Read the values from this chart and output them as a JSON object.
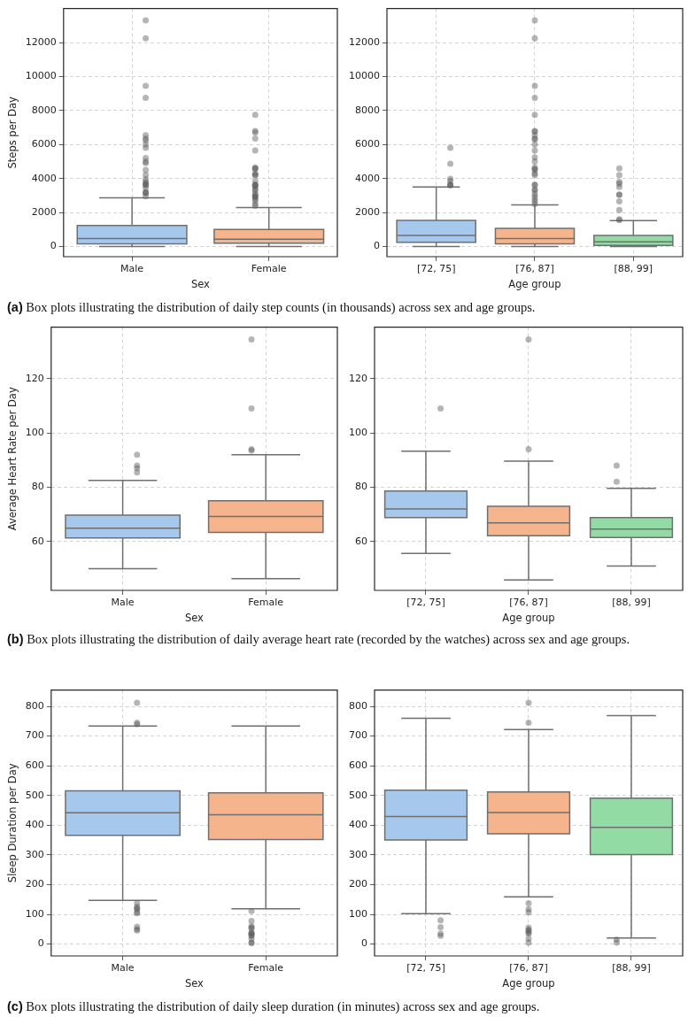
{
  "chart_data": [
    {
      "type": "box",
      "ylabel": "Steps per Day",
      "xlabel": "Sex",
      "categories": [
        "Male",
        "Female"
      ],
      "colors": [
        "#a6c8ec",
        "#f5b48c"
      ],
      "ylim": [
        -600,
        14000
      ],
      "yticks": [
        0,
        2000,
        4000,
        6000,
        8000,
        10000,
        12000
      ],
      "grid": true,
      "boxes": [
        {
          "low": 0,
          "q1": 150,
          "median": 470,
          "q3": 1240,
          "high": 2860,
          "outliers": [
            13300,
            12250,
            9450,
            8750,
            6550,
            6350,
            6250,
            6000,
            5800,
            5200,
            5000,
            4900,
            4500,
            4200,
            3950,
            3800,
            3700,
            3650,
            3600,
            3450,
            3200,
            3150,
            3150,
            2950
          ]
        },
        {
          "low": 0,
          "q1": 200,
          "median": 430,
          "q3": 1000,
          "high": 2290,
          "outliers": [
            7750,
            6800,
            6700,
            6350,
            5650,
            4650,
            4600,
            4550,
            4300,
            4200,
            4200,
            3850,
            3650,
            3600,
            3600,
            3500,
            3350,
            3300,
            3100,
            3000,
            2950,
            2900,
            2800,
            2700,
            2500,
            2400
          ]
        }
      ],
      "annotations": [
        "(a) Box plots illustrating the distribution of daily step counts (in thousands) across sex and age groups."
      ]
    },
    {
      "type": "box",
      "xlabel": "Age group",
      "categories": [
        "[72, 75]",
        "[76, 87]",
        "[88, 99]"
      ],
      "colors": [
        "#a6c8ec",
        "#f5b48c",
        "#92dba4"
      ],
      "ylim": [
        -600,
        14000
      ],
      "yticks": [
        0,
        2000,
        4000,
        6000,
        8000,
        10000,
        12000
      ],
      "grid": true,
      "boxes": [
        {
          "low": 0,
          "q1": 250,
          "median": 650,
          "q3": 1540,
          "high": 3500,
          "outliers": [
            5800,
            4870,
            3980,
            3850,
            3650,
            3600,
            3600
          ]
        },
        {
          "low": 0,
          "q1": 150,
          "median": 470,
          "q3": 1070,
          "high": 2440,
          "outliers": [
            13300,
            12250,
            9450,
            8750,
            7750,
            6800,
            6750,
            6550,
            6350,
            6300,
            6000,
            5650,
            5250,
            5000,
            4650,
            4550,
            4500,
            4300,
            4200,
            3650,
            3600,
            3350,
            3300,
            3100,
            2950,
            2800,
            2650,
            2500
          ]
        },
        {
          "low": 0,
          "q1": 70,
          "median": 270,
          "q3": 650,
          "high": 1520,
          "outliers": [
            4600,
            4200,
            3800,
            3700,
            3500,
            3050,
            3050,
            2650,
            2150,
            1600,
            1550
          ]
        }
      ]
    },
    {
      "type": "box",
      "ylabel": "Average Heart Rate per Day",
      "xlabel": "Sex",
      "categories": [
        "Male",
        "Female"
      ],
      "colors": [
        "#a6c8ec",
        "#f5b48c"
      ],
      "ylim": [
        42,
        139
      ],
      "yticks": [
        60,
        80,
        100,
        120
      ],
      "grid": true,
      "boxes": [
        {
          "low": 50,
          "q1": 61.3,
          "median": 64.9,
          "q3": 69.7,
          "high": 82.5,
          "outliers": [
            92,
            88,
            87,
            85.5
          ]
        },
        {
          "low": 46.3,
          "q1": 63.4,
          "median": 69.2,
          "q3": 75,
          "high": 92,
          "outliers": [
            134.5,
            109,
            94,
            93.5
          ]
        }
      ],
      "annotations": [
        "(b) Box plots illustrating the distribution of daily average heart rate (recorded by the watches) across sex and age groups."
      ]
    },
    {
      "type": "box",
      "xlabel": "Age group",
      "categories": [
        "[72, 75]",
        "[76, 87]",
        "[88, 99]"
      ],
      "colors": [
        "#a6c8ec",
        "#f5b48c",
        "#92dba4"
      ],
      "ylim": [
        42,
        139
      ],
      "yticks": [
        60,
        80,
        100,
        120
      ],
      "grid": true,
      "boxes": [
        {
          "low": 55.6,
          "q1": 68.8,
          "median": 72,
          "q3": 78.6,
          "high": 93.3,
          "outliers": [
            109
          ]
        },
        {
          "low": 45.8,
          "q1": 62.1,
          "median": 66.9,
          "q3": 73,
          "high": 89.6,
          "outliers": [
            134.5,
            94
          ]
        },
        {
          "low": 51,
          "q1": 61.5,
          "median": 64.6,
          "q3": 68.8,
          "high": 79.6,
          "outliers": [
            88,
            82
          ]
        }
      ]
    },
    {
      "type": "box",
      "ylabel": "Sleep Duration per Day",
      "xlabel": "Sex",
      "categories": [
        "Male",
        "Female"
      ],
      "colors": [
        "#a6c8ec",
        "#f5b48c"
      ],
      "ylim": [
        -40,
        855
      ],
      "yticks": [
        0,
        100,
        200,
        300,
        400,
        500,
        600,
        700,
        800
      ],
      "grid": true,
      "boxes": [
        {
          "low": 147,
          "q1": 366,
          "median": 442,
          "q3": 516,
          "high": 734,
          "outliers": [
            812,
            745,
            740,
            137,
            125,
            120,
            118,
            107,
            104,
            58,
            50,
            46
          ]
        },
        {
          "low": 119,
          "q1": 352,
          "median": 435,
          "q3": 509,
          "high": 734,
          "outliers": [
            111,
            78,
            60,
            55,
            52,
            38,
            36,
            35,
            30,
            27,
            17,
            5,
            3
          ]
        }
      ],
      "annotations": [
        "(c) Box plots illustrating the distribution of daily sleep duration (in minutes) across sex and age groups."
      ]
    },
    {
      "type": "box",
      "xlabel": "Age group",
      "categories": [
        "[72, 75]",
        "[76, 87]",
        "[88, 99]"
      ],
      "colors": [
        "#a6c8ec",
        "#f5b48c",
        "#92dba4"
      ],
      "ylim": [
        -40,
        855
      ],
      "yticks": [
        0,
        100,
        200,
        300,
        400,
        500,
        600,
        700,
        800
      ],
      "grid": true,
      "boxes": [
        {
          "low": 102,
          "q1": 350,
          "median": 429,
          "q3": 518,
          "high": 760,
          "outliers": [
            80,
            57,
            35,
            28
          ]
        },
        {
          "low": 159,
          "q1": 371,
          "median": 443,
          "q3": 512,
          "high": 722,
          "outliers": [
            812,
            745,
            137,
            117,
            107,
            55,
            48,
            45,
            38,
            35,
            18,
            5
          ]
        },
        {
          "low": 20,
          "q1": 301,
          "median": 393,
          "q3": 491,
          "high": 769,
          "outliers": [
            15,
            5
          ]
        }
      ]
    }
  ]
}
